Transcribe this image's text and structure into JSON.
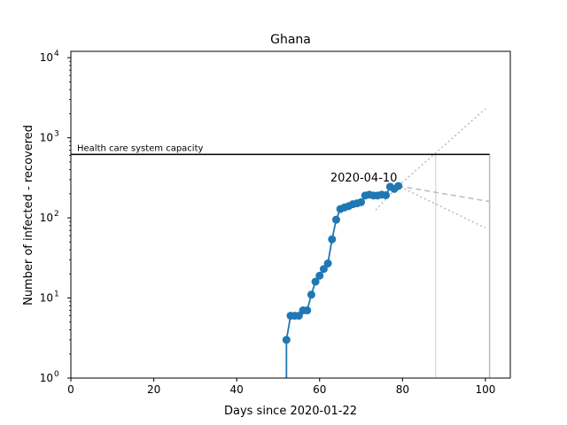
{
  "chart_data": {
    "type": "line",
    "title": "Ghana",
    "xlabel": "Days since 2020-01-22",
    "ylabel": "Number of infected - recovered",
    "xlim": [
      0,
      106
    ],
    "ylim": [
      1,
      12000
    ],
    "y_scale": "log",
    "x_ticks": [
      0,
      20,
      40,
      60,
      80,
      100
    ],
    "x_tick_labels": [
      "0",
      "20",
      "40",
      "60",
      "80",
      "100"
    ],
    "y_ticks": [
      1,
      10,
      100,
      1000,
      10000
    ],
    "y_tick_labels": [
      "10^0",
      "10^1",
      "10^2",
      "10^3",
      "10^4"
    ],
    "grid": false,
    "series": [
      {
        "color": "#1f77b4",
        "x": [
          52,
          53,
          54,
          55,
          56,
          57,
          58,
          59,
          60,
          61,
          62,
          63,
          64,
          65,
          66,
          67,
          68,
          69,
          70,
          71,
          72,
          73,
          74,
          75,
          76,
          77,
          78,
          79
        ],
        "y": [
          3,
          6,
          6,
          6,
          7,
          7,
          11,
          16,
          19,
          23,
          27,
          54,
          95,
          129,
          135,
          140,
          148,
          152,
          157,
          190,
          195,
          190,
          190,
          195,
          192,
          245,
          230,
          250
        ],
        "leading_line_to_bottom": true
      }
    ],
    "projection": {
      "color": "#bbbbbb",
      "central": {
        "x": [
          79,
          101
        ],
        "y": [
          250,
          160
        ]
      },
      "upper": {
        "x": [
          79,
          100
        ],
        "y": [
          250,
          2300
        ]
      },
      "lower": {
        "x": [
          73.5,
          79,
          100
        ],
        "y": [
          125,
          250,
          75
        ]
      }
    },
    "capacity_line": {
      "label": "Health care system capacity",
      "y": 620,
      "x": [
        0,
        101
      ],
      "color": "#000000"
    },
    "vertical_lines": [
      {
        "x": 88,
        "y_top": 620,
        "color": "#dddddd"
      },
      {
        "x": 101,
        "y_top": 620,
        "color": "#bbbbbb"
      }
    ],
    "annotation": {
      "text": "2020-04-10",
      "x": 79,
      "y": 250
    }
  }
}
